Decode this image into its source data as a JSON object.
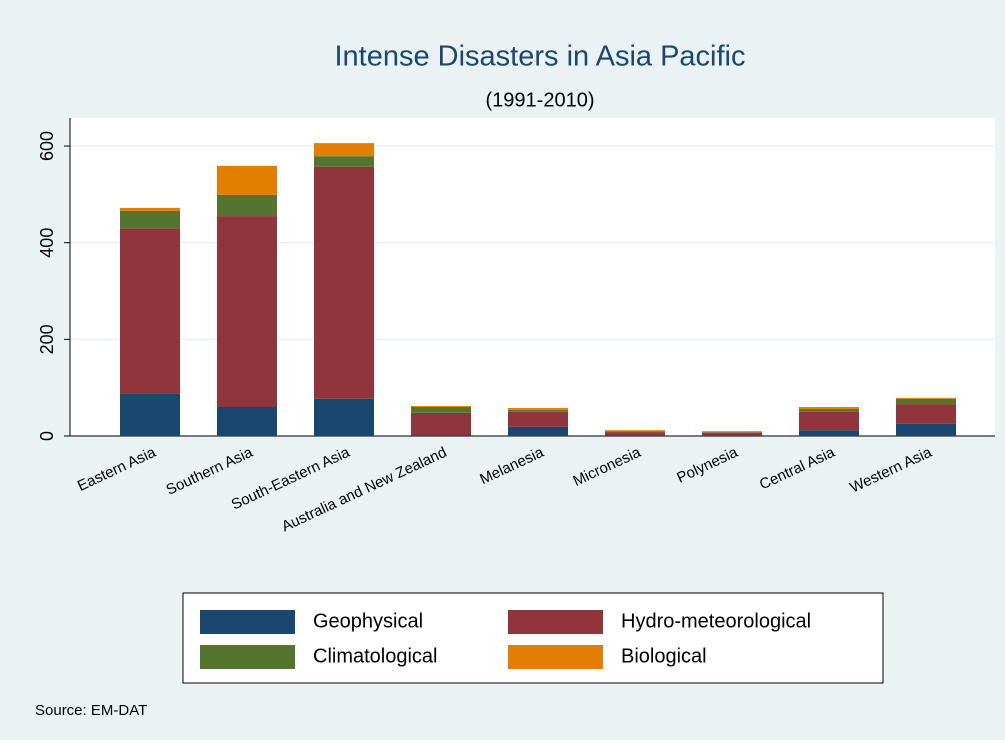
{
  "chart_data": {
    "type": "stacked_bar",
    "title": "Intense Disasters in Asia Pacific",
    "subtitle": "(1991-2010)",
    "categories": [
      "Eastern Asia",
      "Southern Asia",
      "South-Eastern Asia",
      "Australia and New Zealand",
      "Melanesia",
      "Micronesia",
      "Polynesia",
      "Central Asia",
      "Western Asia"
    ],
    "series": [
      {
        "name": "Geophysical",
        "color": "#1a476f",
        "values": [
          87,
          60,
          77,
          2,
          19,
          1,
          1,
          12,
          25
        ]
      },
      {
        "name": "Hydro-meteorological",
        "color": "#90353b",
        "values": [
          343,
          395,
          480,
          46,
          31,
          7,
          6,
          38,
          41
        ]
      },
      {
        "name": "Climatological",
        "color": "#55752f",
        "values": [
          36,
          44,
          22,
          12,
          4,
          2,
          1,
          6,
          11
        ]
      },
      {
        "name": "Biological",
        "color": "#e37e00",
        "values": [
          6,
          60,
          27,
          2,
          4,
          2,
          2,
          4,
          2
        ]
      }
    ],
    "ylim": [
      0,
      658
    ],
    "yticks": [
      0,
      200,
      400,
      600
    ],
    "grid": true,
    "source": "Source: EM-DAT"
  }
}
